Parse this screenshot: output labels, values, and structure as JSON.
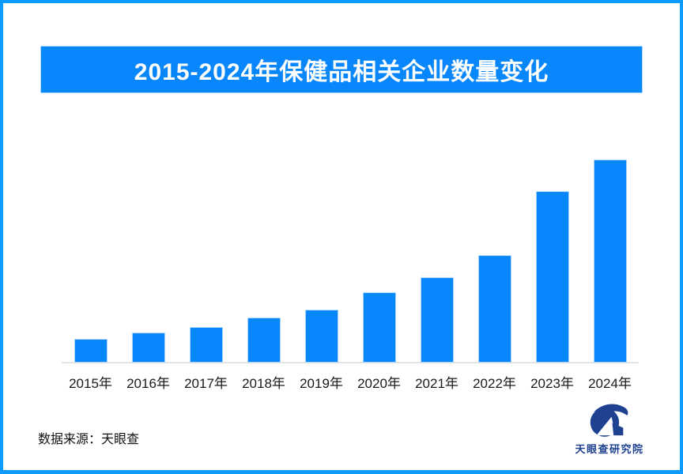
{
  "header": {
    "title": "2015-2024年保健品相关企业数量变化"
  },
  "chart_data": {
    "type": "bar",
    "title": "2015-2024年保健品相关企业数量变化",
    "categories": [
      "2015年",
      "2016年",
      "2017年",
      "2018年",
      "2019年",
      "2020年",
      "2021年",
      "2022年",
      "2023年",
      "2024年"
    ],
    "values": [
      28,
      36,
      43,
      55,
      65,
      87,
      106,
      134,
      215,
      255
    ],
    "xlabel": "",
    "ylabel": "",
    "ylim": [
      0,
      270
    ],
    "grid": false,
    "legend": false,
    "value_axis_labeled": false,
    "note": "no y-axis ticks or data labels are shown in the figure; values are relative bar heights",
    "bar_color": "#0787fb"
  },
  "footer": {
    "source": "数据来源：天眼查",
    "brand": "天眼查研究院"
  },
  "icons": {
    "brand_logo": "tianyancha-eye-logo"
  },
  "colors": {
    "background": "#ffffff",
    "frame_border": "#0d9bfd",
    "banner": "#0787fb",
    "bar": "#0787fb",
    "bar_edge": "#a9d5fa",
    "axis_line": "#e3e3e3",
    "label_text": "#1a1a1a",
    "source_text": "#111111",
    "brand_navy": "#1e4190",
    "title_text": "#ffffff"
  }
}
